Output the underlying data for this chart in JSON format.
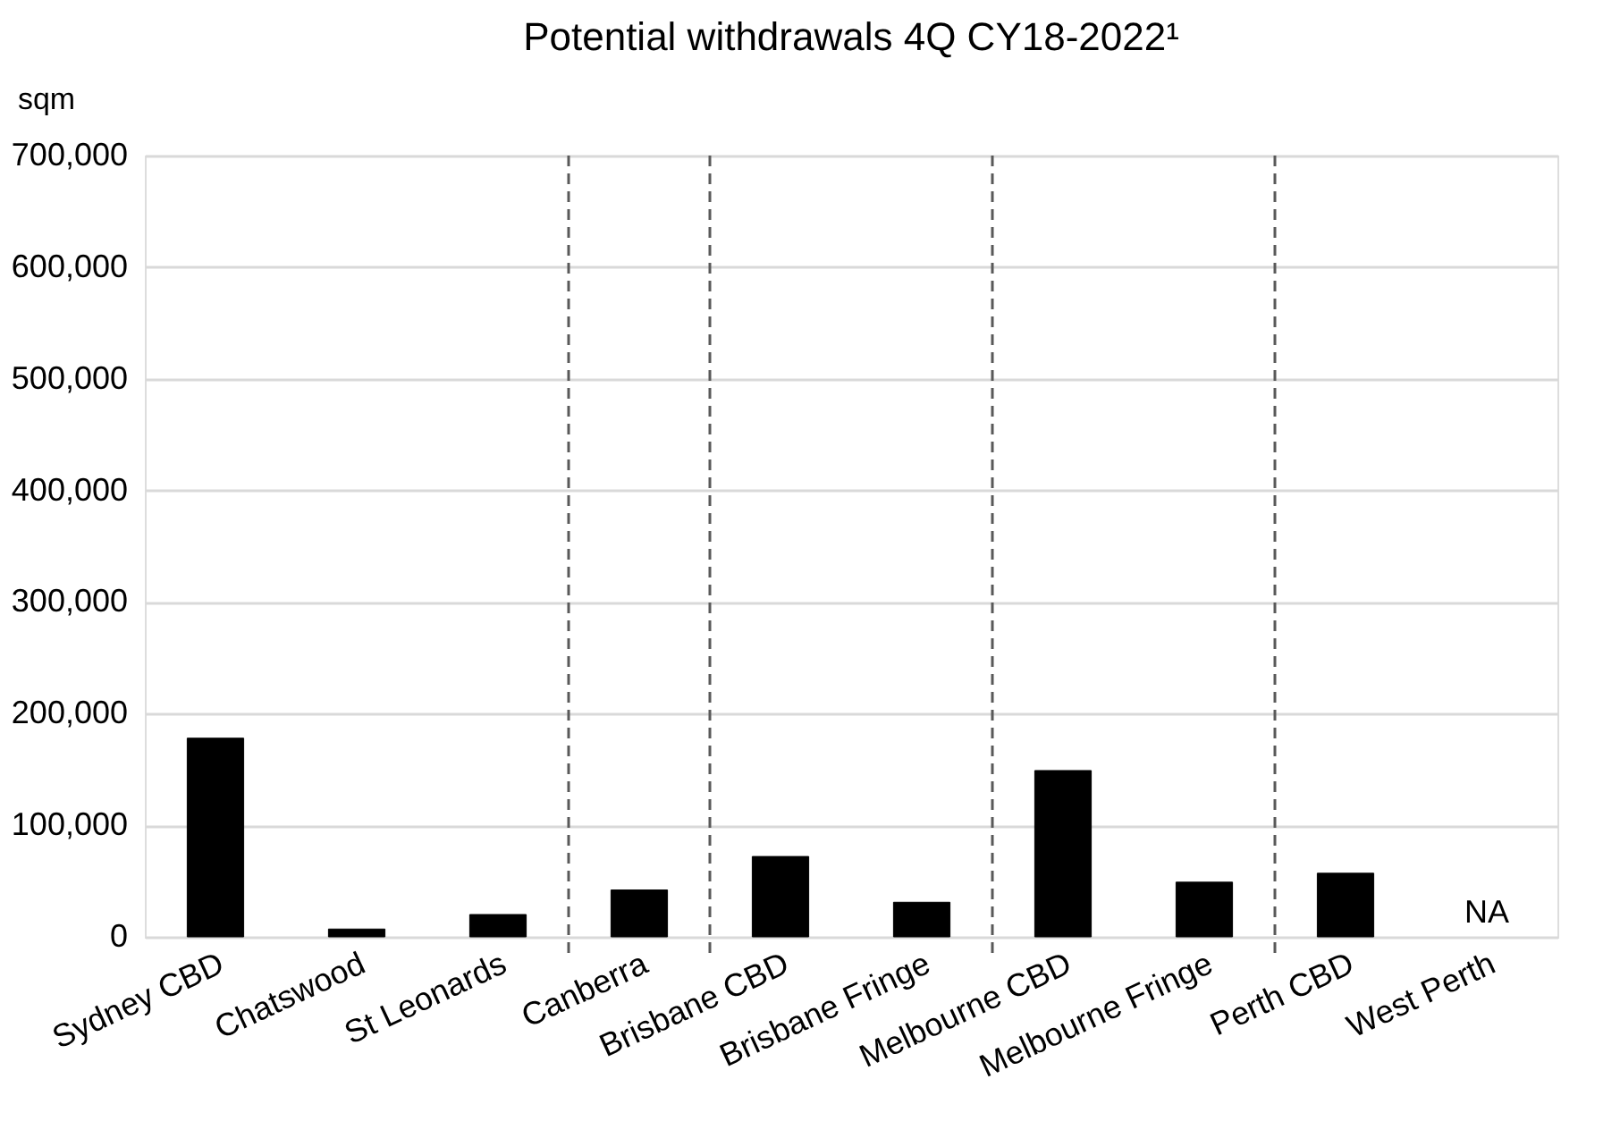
{
  "chart_data": {
    "type": "bar",
    "title": "Potential withdrawals 4Q CY18-2022¹",
    "ylabel": "sqm",
    "categories": [
      "Sydney CBD",
      "Chatswood",
      "St Leonards",
      "Canberra",
      "Brisbane CBD",
      "Brisbane Fringe",
      "Melbourne CBD",
      "Melbourne Fringe",
      "Perth CBD",
      "West Perth"
    ],
    "values": [
      178000,
      7000,
      20000,
      42000,
      72000,
      31000,
      149000,
      49000,
      57000,
      null
    ],
    "color": "#000000",
    "ylim": [
      0,
      700000
    ],
    "yticks": [
      0,
      {
        "value": 100000,
        "label": "100,000"
      },
      {
        "value": 200000,
        "label": "200,000"
      },
      {
        "value": 300000,
        "label": "300,000"
      },
      {
        "value": 400000,
        "label": "400,000"
      },
      {
        "value": 500000,
        "label": "500,000"
      },
      {
        "value": 600000,
        "label": "600,000"
      },
      {
        "value": 700000,
        "label": "700,000"
      }
    ],
    "grid": "y",
    "annotations": [
      "NA"
    ]
  }
}
